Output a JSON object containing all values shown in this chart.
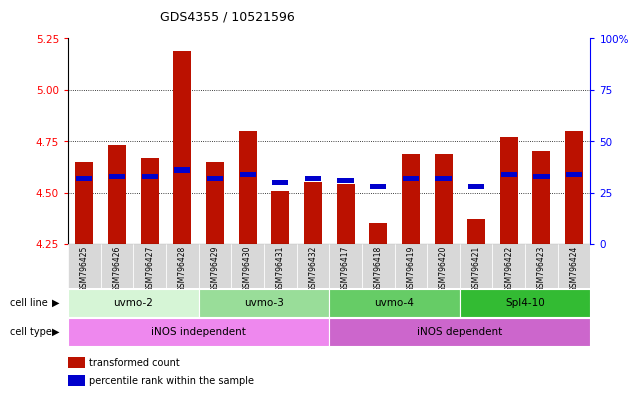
{
  "title": "GDS4355 / 10521596",
  "samples": [
    "GSM796425",
    "GSM796426",
    "GSM796427",
    "GSM796428",
    "GSM796429",
    "GSM796430",
    "GSM796431",
    "GSM796432",
    "GSM796417",
    "GSM796418",
    "GSM796419",
    "GSM796420",
    "GSM796421",
    "GSM796422",
    "GSM796423",
    "GSM796424"
  ],
  "transformed_count": [
    4.65,
    4.73,
    4.67,
    5.19,
    4.65,
    4.8,
    4.51,
    4.55,
    4.54,
    4.35,
    4.69,
    4.69,
    4.37,
    4.77,
    4.7,
    4.8
  ],
  "percentile_values": [
    32,
    33,
    33,
    36,
    32,
    34,
    30,
    32,
    31,
    28,
    32,
    32,
    28,
    34,
    33,
    34
  ],
  "ymin": 4.25,
  "ymax": 5.25,
  "yticks": [
    4.25,
    4.5,
    4.75,
    5.0,
    5.25
  ],
  "cell_line_groups": [
    {
      "label": "uvmo-2",
      "start": 0,
      "end": 4,
      "color": "#d6f5d6"
    },
    {
      "label": "uvmo-3",
      "start": 4,
      "end": 8,
      "color": "#99dd99"
    },
    {
      "label": "uvmo-4",
      "start": 8,
      "end": 12,
      "color": "#66cc66"
    },
    {
      "label": "Spl4-10",
      "start": 12,
      "end": 16,
      "color": "#33bb33"
    }
  ],
  "cell_type_groups": [
    {
      "label": "iNOS independent",
      "start": 0,
      "end": 8,
      "color": "#ee88ee"
    },
    {
      "label": "iNOS dependent",
      "start": 8,
      "end": 16,
      "color": "#cc66cc"
    }
  ],
  "bar_color": "#bb1100",
  "blue_color": "#0000cc",
  "right_yaxis_ticks": [
    0,
    25,
    50,
    75,
    100
  ],
  "right_yaxis_labels": [
    "0",
    "25",
    "50",
    "75",
    "100%"
  ],
  "grid_yticks": [
    4.5,
    4.75,
    5.0
  ],
  "legend_items": [
    {
      "color": "#bb1100",
      "label": "transformed count"
    },
    {
      "color": "#0000cc",
      "label": "percentile rank within the sample"
    }
  ]
}
